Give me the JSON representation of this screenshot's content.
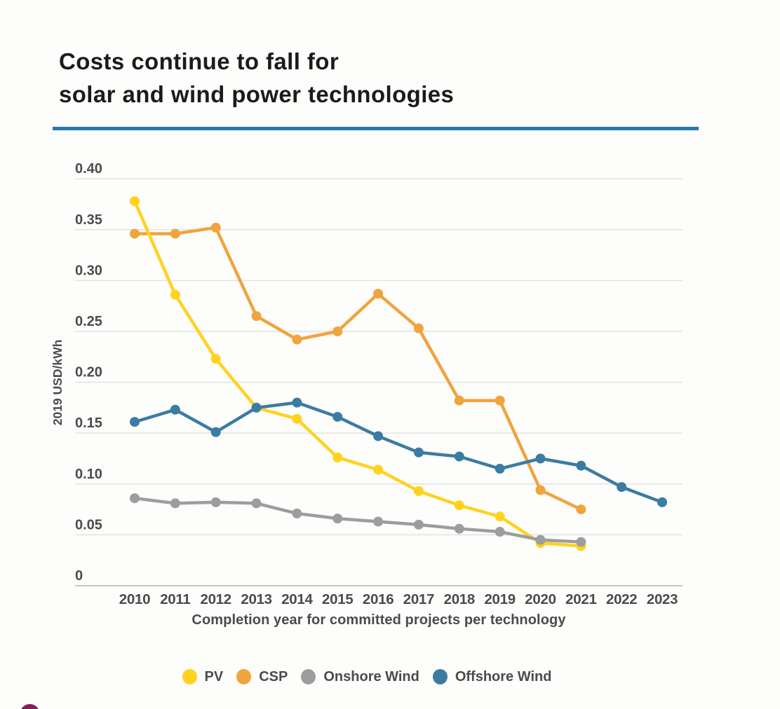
{
  "page": {
    "background": "#fdfdfb",
    "accent_rule_color": "#2979a9",
    "logo_fragment_color": "#852151"
  },
  "header": {
    "title_line1": "Costs continue to fall for",
    "title_line2": "solar and wind power technologies"
  },
  "chart_data": {
    "type": "line",
    "title": "Costs continue to fall for solar and wind power technologies",
    "xlabel": "Completion year for committed projects per technology",
    "ylabel": "2019 USD/kWh",
    "categories": [
      2010,
      2011,
      2012,
      2013,
      2014,
      2015,
      2016,
      2017,
      2018,
      2019,
      2020,
      2021,
      2022,
      2023
    ],
    "ylim": [
      0,
      0.4
    ],
    "grid": true,
    "legend_position": "bottom",
    "yticks": [
      {
        "label": "0.40",
        "value": 0.4
      },
      {
        "label": "0.35",
        "value": 0.35
      },
      {
        "label": "0.30",
        "value": 0.3
      },
      {
        "label": "0.25",
        "value": 0.25
      },
      {
        "label": "0.20",
        "value": 0.2
      },
      {
        "label": "0.15",
        "value": 0.15
      },
      {
        "label": "0.10",
        "value": 0.1
      },
      {
        "label": "0.05",
        "value": 0.05
      },
      {
        "label": "0",
        "value": 0
      }
    ],
    "series": [
      {
        "name": "PV",
        "color": "#ffd21f",
        "x": [
          2010,
          2011,
          2012,
          2013,
          2014,
          2015,
          2016,
          2017,
          2018,
          2019,
          2020,
          2021
        ],
        "values": [
          0.378,
          0.286,
          0.223,
          0.175,
          0.164,
          0.126,
          0.114,
          0.093,
          0.079,
          0.068,
          0.042,
          0.039
        ]
      },
      {
        "name": "CSP",
        "color": "#f0a43d",
        "x": [
          2010,
          2011,
          2012,
          2013,
          2014,
          2015,
          2016,
          2017,
          2018,
          2019,
          2020,
          2021
        ],
        "values": [
          0.346,
          0.346,
          0.352,
          0.265,
          0.242,
          0.25,
          0.287,
          0.253,
          0.182,
          0.182,
          0.094,
          0.075
        ]
      },
      {
        "name": "Onshore Wind",
        "color": "#9d9d9d",
        "x": [
          2010,
          2011,
          2012,
          2013,
          2014,
          2015,
          2016,
          2017,
          2018,
          2019,
          2020,
          2021
        ],
        "values": [
          0.086,
          0.081,
          0.082,
          0.081,
          0.071,
          0.066,
          0.063,
          0.06,
          0.056,
          0.053,
          0.045,
          0.043
        ]
      },
      {
        "name": "Offshore Wind",
        "color": "#3a7ca3",
        "x": [
          2010,
          2011,
          2012,
          2013,
          2014,
          2015,
          2016,
          2017,
          2018,
          2019,
          2020,
          2021,
          2022,
          2023
        ],
        "values": [
          0.161,
          0.173,
          0.151,
          0.175,
          0.18,
          0.166,
          0.147,
          0.131,
          0.127,
          0.115,
          0.125,
          0.118,
          0.097,
          0.082
        ]
      }
    ]
  }
}
